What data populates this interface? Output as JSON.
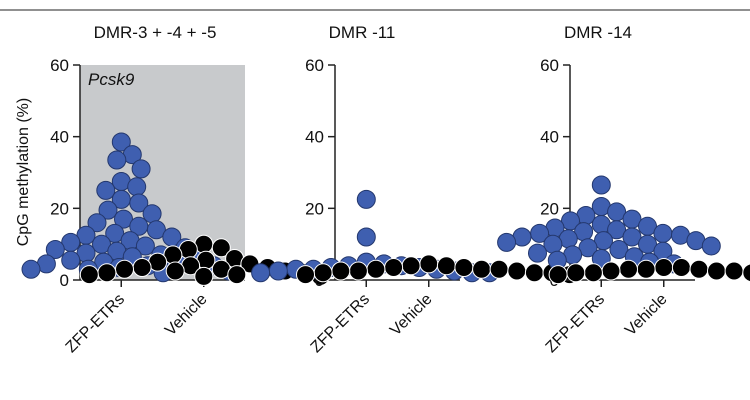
{
  "colors": {
    "zfp": "#3f5fb0",
    "vehicle": "#000000",
    "shade": "#c8cacc",
    "axis": "#222222"
  },
  "chart_data": [
    {
      "type": "scatter",
      "title": "DMR-3 + -4 + -5",
      "annotation": "Pcsk9",
      "ylabel": "CpG methylation (%)",
      "ylim": [
        0,
        60
      ],
      "yticks": [
        "0",
        "20",
        "40",
        "60"
      ],
      "shaded": true,
      "categories": [
        "ZFP-ETRs",
        "Vehicle"
      ],
      "series": [
        {
          "category": "ZFP-ETRs",
          "color": "#3f5fb0",
          "values": [
            38.5,
            35,
            33.5,
            31,
            27.5,
            26,
            25,
            22.5,
            21.5,
            19.5,
            18.5,
            17,
            16,
            15,
            14,
            13,
            12.5,
            12,
            11,
            10.5,
            10,
            9.5,
            9,
            8.5,
            8,
            7.5,
            7,
            6.5,
            6,
            5.5,
            5,
            5,
            4.5,
            4,
            4,
            3.5,
            3,
            3,
            2.5,
            2
          ]
        },
        {
          "category": "Vehicle",
          "color": "#000000",
          "values": [
            10,
            9,
            8.5,
            7,
            6,
            5.5,
            5,
            4.5,
            4,
            3.5,
            3.5,
            3,
            3,
            2.5,
            2.5,
            2,
            2,
            1.5,
            1.5,
            1,
            1
          ]
        }
      ]
    },
    {
      "type": "scatter",
      "title": "DMR -11",
      "ylim": [
        0,
        60
      ],
      "yticks": [
        "0",
        "20",
        "40",
        "60"
      ],
      "shaded": false,
      "categories": [
        "ZFP-ETRs",
        "Vehicle"
      ],
      "series": [
        {
          "category": "ZFP-ETRs",
          "color": "#3f5fb0",
          "values": [
            22.5,
            12,
            5,
            4.5,
            4,
            4,
            3.5,
            3.5,
            3,
            3,
            3,
            2.5,
            2.5,
            2,
            2,
            2
          ]
        },
        {
          "category": "Vehicle",
          "color": "#000000",
          "values": [
            4.5,
            4,
            4,
            3.5,
            3.5,
            3,
            3,
            3,
            2.5,
            2.5,
            2.5,
            2,
            2,
            2,
            1.5,
            1.5
          ]
        }
      ]
    },
    {
      "type": "scatter",
      "title": "DMR -14",
      "ylim": [
        0,
        60
      ],
      "yticks": [
        "0",
        "20",
        "40",
        "60"
      ],
      "shaded": false,
      "categories": [
        "ZFP-ETRs",
        "Vehicle"
      ],
      "series": [
        {
          "category": "ZFP-ETRs",
          "color": "#3f5fb0",
          "values": [
            26.5,
            20.5,
            19,
            18,
            17,
            16.5,
            15.5,
            15,
            14.5,
            14,
            13.5,
            13,
            13,
            12.5,
            12,
            12,
            11.5,
            11,
            11,
            10.5,
            10,
            10,
            9.5,
            9,
            8.5,
            8,
            7.5,
            7,
            6.5,
            6,
            5.5,
            5,
            4.5
          ]
        },
        {
          "category": "Vehicle",
          "color": "#000000",
          "values": [
            3.5,
            3.5,
            3,
            3,
            3,
            2.5,
            2.5,
            2.5,
            2,
            2,
            2,
            1.5,
            1.5,
            1.5
          ]
        }
      ]
    }
  ]
}
